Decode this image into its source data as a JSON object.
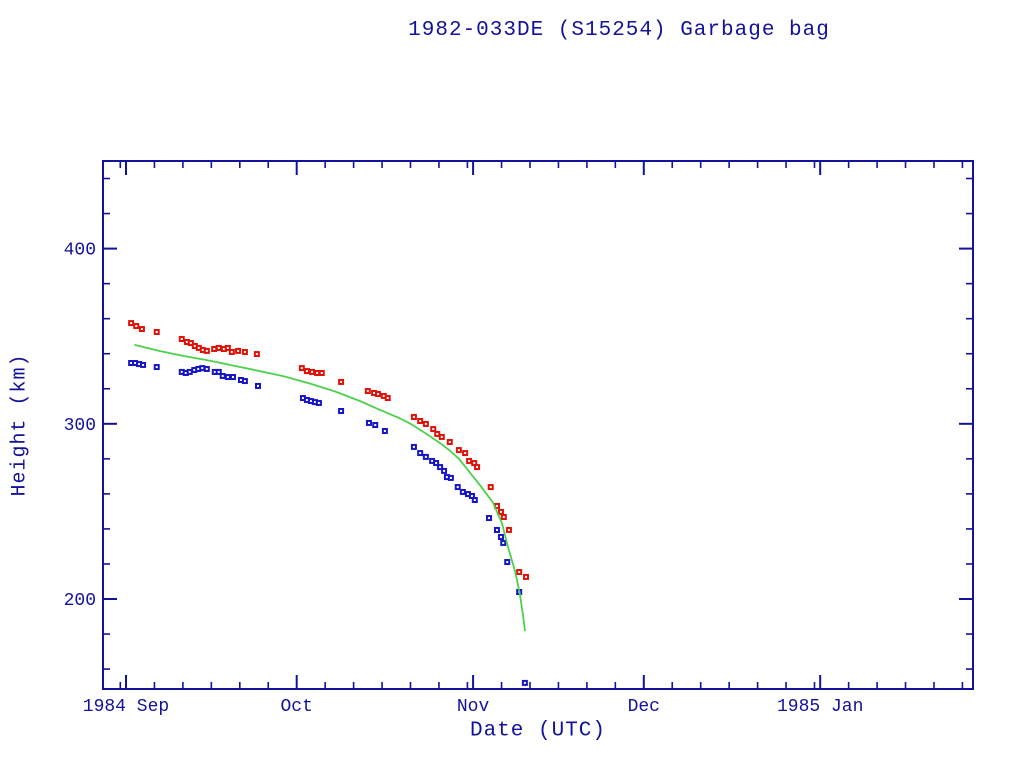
{
  "title": "1982-033DE (S15254) Garbage bag",
  "colors": {
    "frame_and_text": "#12129a",
    "red_series": "#e01208",
    "blue_series": "#1616c6",
    "green_line": "#4bd14b",
    "background": "#ffffff",
    "marker_center": "#ffffff"
  },
  "chart_data": {
    "type": "scatter",
    "title": "1982-033DE (S15254) Garbage bag",
    "xlabel": "Date (UTC)",
    "ylabel": "Height (km)",
    "grid": false,
    "legend": "none",
    "x_axis": {
      "epoch_label": "1984 Sep 1",
      "units": "days since 1984 Sep 1",
      "range_days": [
        -4.1,
        148.9
      ],
      "major_ticks": [
        {
          "day": 0,
          "label": "1984 Sep"
        },
        {
          "day": 30,
          "label": "Oct"
        },
        {
          "day": 61,
          "label": "Nov"
        },
        {
          "day": 91,
          "label": "Dec"
        },
        {
          "day": 122,
          "label": "1985 Jan"
        }
      ],
      "minor_tick_days": [
        -1,
        5,
        10,
        15,
        20,
        25,
        35,
        40,
        45,
        50,
        55,
        60,
        66,
        71,
        76,
        81,
        86,
        96,
        101,
        106,
        111,
        116,
        121,
        127,
        132,
        137,
        142,
        147
      ]
    },
    "y_axis": {
      "range_km": [
        148.5,
        450.5
      ],
      "major_ticks": [
        {
          "value": 200,
          "label": "200"
        },
        {
          "value": 300,
          "label": "300"
        },
        {
          "value": 400,
          "label": "400"
        }
      ],
      "minor_ticks": [
        160,
        180,
        220,
        240,
        260,
        280,
        320,
        340,
        360,
        380,
        420,
        440
      ]
    },
    "series": [
      {
        "name": "red-squares-upper",
        "marker": "open-square",
        "color": "#e01208",
        "points": [
          [
            0.9,
            357.5
          ],
          [
            1.8,
            355.8
          ],
          [
            2.8,
            354.1
          ],
          [
            5.4,
            352.4
          ],
          [
            9.8,
            348.4
          ],
          [
            10.7,
            346.7
          ],
          [
            11.4,
            346.1
          ],
          [
            12.1,
            344.4
          ],
          [
            12.8,
            343.3
          ],
          [
            13.5,
            342.1
          ],
          [
            14.2,
            341.6
          ],
          [
            15.5,
            342.7
          ],
          [
            16.3,
            343.3
          ],
          [
            17.2,
            342.7
          ],
          [
            17.9,
            343.3
          ],
          [
            18.6,
            341.0
          ],
          [
            19.7,
            341.6
          ],
          [
            20.9,
            341.0
          ],
          [
            23.0,
            339.8
          ],
          [
            30.9,
            331.8
          ],
          [
            31.8,
            330.1
          ],
          [
            32.7,
            329.6
          ],
          [
            33.6,
            329.0
          ],
          [
            34.4,
            329.0
          ],
          [
            37.8,
            323.9
          ],
          [
            42.5,
            318.7
          ],
          [
            43.6,
            317.6
          ],
          [
            44.3,
            317.0
          ],
          [
            45.3,
            315.9
          ],
          [
            46.0,
            314.7
          ],
          [
            50.6,
            303.9
          ],
          [
            51.7,
            301.6
          ],
          [
            52.7,
            299.9
          ],
          [
            54.0,
            297.0
          ],
          [
            54.7,
            294.2
          ],
          [
            55.5,
            292.5
          ],
          [
            56.9,
            289.6
          ],
          [
            58.5,
            285.0
          ],
          [
            59.6,
            283.3
          ],
          [
            60.3,
            278.8
          ],
          [
            61.2,
            277.6
          ],
          [
            61.7,
            275.3
          ],
          [
            64.1,
            263.9
          ],
          [
            65.2,
            253.1
          ],
          [
            65.9,
            249.7
          ],
          [
            66.4,
            246.8
          ],
          [
            67.3,
            239.4
          ],
          [
            69.1,
            215.4
          ],
          [
            70.3,
            212.6
          ]
        ]
      },
      {
        "name": "blue-squares-lower",
        "marker": "open-square",
        "color": "#1616c6",
        "points": [
          [
            0.9,
            334.7
          ],
          [
            1.6,
            334.7
          ],
          [
            2.3,
            334.1
          ],
          [
            3.0,
            333.6
          ],
          [
            5.4,
            332.4
          ],
          [
            9.8,
            329.6
          ],
          [
            10.5,
            329.0
          ],
          [
            11.2,
            329.6
          ],
          [
            12.0,
            330.7
          ],
          [
            12.7,
            331.3
          ],
          [
            13.4,
            331.8
          ],
          [
            14.2,
            331.3
          ],
          [
            15.6,
            329.6
          ],
          [
            16.3,
            329.6
          ],
          [
            17.0,
            327.3
          ],
          [
            17.9,
            326.7
          ],
          [
            18.8,
            326.7
          ],
          [
            20.2,
            325.0
          ],
          [
            20.9,
            324.4
          ],
          [
            23.2,
            321.6
          ],
          [
            31.1,
            314.7
          ],
          [
            31.8,
            313.6
          ],
          [
            32.5,
            313.0
          ],
          [
            33.2,
            312.4
          ],
          [
            33.9,
            311.9
          ],
          [
            37.8,
            307.3
          ],
          [
            42.7,
            300.5
          ],
          [
            43.8,
            299.3
          ],
          [
            45.5,
            295.9
          ],
          [
            50.6,
            286.8
          ],
          [
            51.7,
            283.3
          ],
          [
            52.7,
            281.1
          ],
          [
            53.8,
            278.8
          ],
          [
            54.5,
            277.6
          ],
          [
            55.2,
            275.3
          ],
          [
            55.9,
            273.1
          ],
          [
            56.4,
            269.6
          ],
          [
            57.1,
            269.1
          ],
          [
            58.3,
            263.9
          ],
          [
            59.2,
            261.1
          ],
          [
            60.1,
            259.9
          ],
          [
            60.8,
            258.8
          ],
          [
            61.3,
            256.5
          ],
          [
            63.8,
            246.2
          ],
          [
            65.2,
            239.4
          ],
          [
            65.9,
            235.4
          ],
          [
            66.3,
            232.0
          ],
          [
            67.0,
            221.1
          ],
          [
            69.1,
            204.0
          ],
          [
            70.1,
            152.1
          ]
        ]
      },
      {
        "name": "green-fit-line",
        "marker": "none",
        "type": "line",
        "color": "#4bd14b",
        "points": [
          [
            1.6,
            345.0
          ],
          [
            6.0,
            341.5
          ],
          [
            10.4,
            338.5
          ],
          [
            14.8,
            336.0
          ],
          [
            19.2,
            333.0
          ],
          [
            23.6,
            330.0
          ],
          [
            27.9,
            327.0
          ],
          [
            32.3,
            323.0
          ],
          [
            36.7,
            318.5
          ],
          [
            41.1,
            313.0
          ],
          [
            44.6,
            308.0
          ],
          [
            48.2,
            303.0
          ],
          [
            50.0,
            300.0
          ],
          [
            51.7,
            296.5
          ],
          [
            53.4,
            293.0
          ],
          [
            55.2,
            289.0
          ],
          [
            57.0,
            284.5
          ],
          [
            58.5,
            280.0
          ],
          [
            60.1,
            273.5
          ],
          [
            62.2,
            265.0
          ],
          [
            64.5,
            255.0
          ],
          [
            66.1,
            243.0
          ],
          [
            67.1,
            230.0
          ],
          [
            68.4,
            215.5
          ],
          [
            69.2,
            203.5
          ],
          [
            69.8,
            190.0
          ],
          [
            70.1,
            182.0
          ]
        ]
      }
    ]
  }
}
